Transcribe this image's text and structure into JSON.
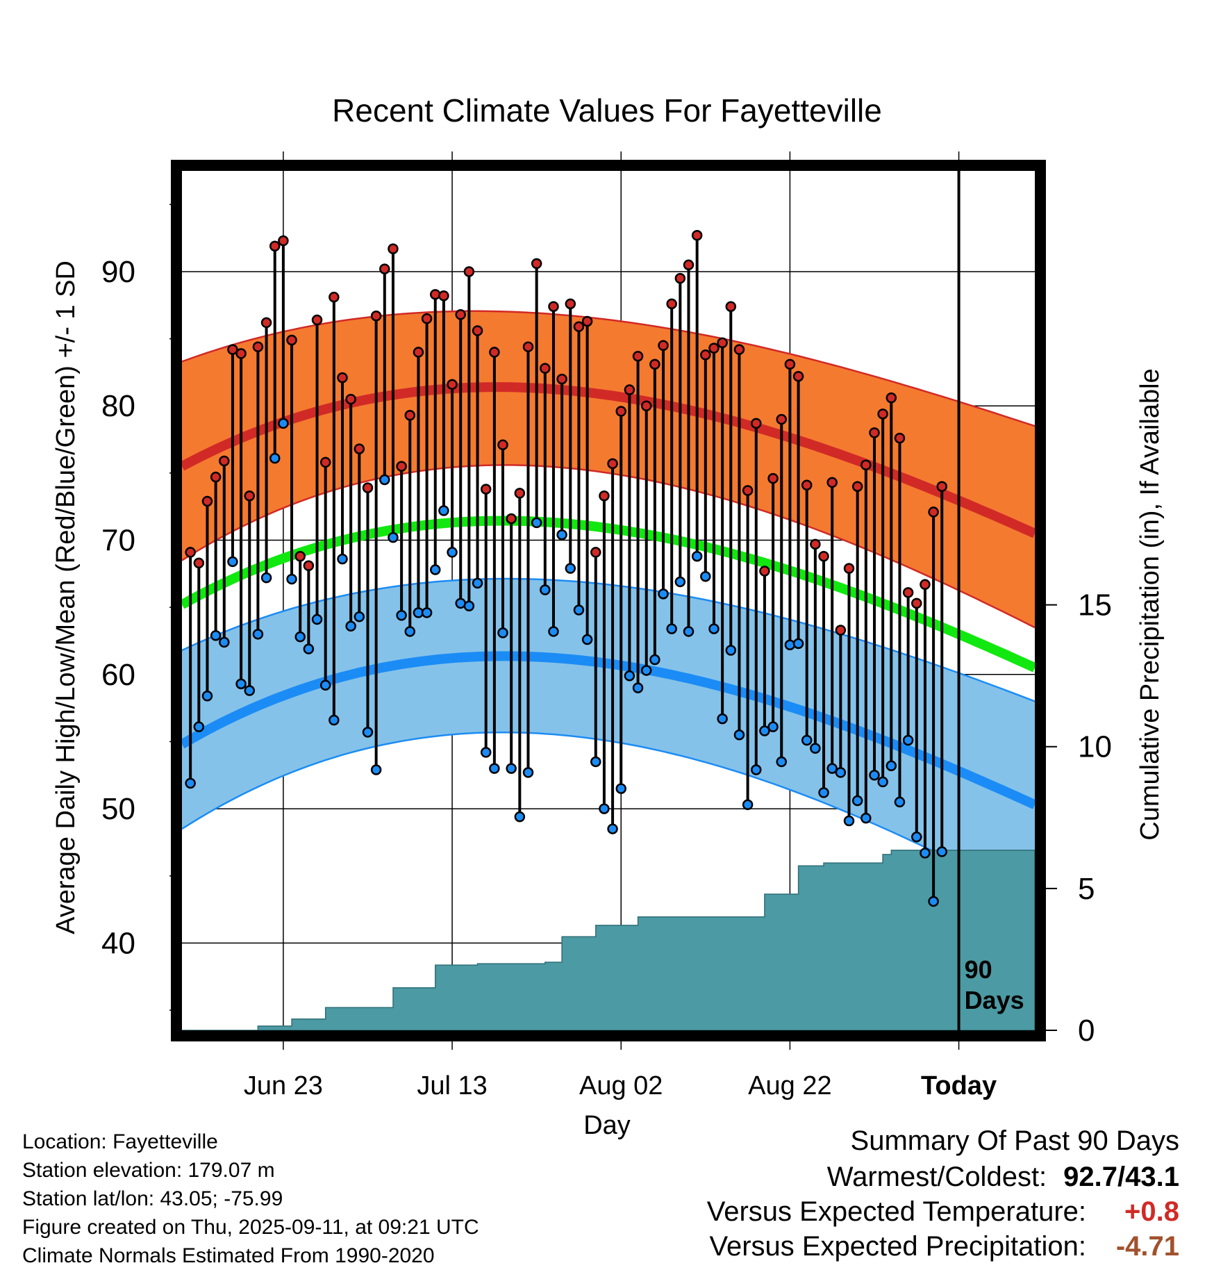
{
  "chart_data": {
    "type": "line",
    "title": "Recent Climate Values For Fayetteville",
    "xlabel": "Day",
    "ylabel_left": "Average Daily High/Low/Mean (Red/Blue/Green) +/- 1 SD",
    "ylabel_right": "Cumulative Precipitation (in), If Available",
    "x_tick_labels": [
      "Jun 23",
      "Jul 13",
      "Aug 02",
      "Aug 22",
      "Today"
    ],
    "x_tick_days": [
      12,
      32,
      52,
      72,
      92
    ],
    "xlim": [
      0,
      101
    ],
    "today_day": 92,
    "ylim_left": [
      33.5,
      97.5
    ],
    "y_ticks_left": [
      40,
      50,
      60,
      70,
      80,
      90
    ],
    "ylim_right": [
      0,
      30.3
    ],
    "y_ticks_right": [
      0,
      5,
      10,
      15
    ],
    "today_marker_label": [
      "90",
      "Days"
    ],
    "grid": true,
    "colors": {
      "high_band": "#f47a30",
      "high_line": "#d12a26",
      "low_band": "#85c2e9",
      "low_line": "#1b8cf5",
      "mean_line": "#11e80f",
      "precip": "#4c9aa3",
      "high_dot": "#d12a26",
      "low_dot": "#1b8cf5"
    },
    "normal_high": {
      "days": [
        0,
        30,
        60,
        101
      ],
      "mean": [
        75.5,
        81.2,
        79.7,
        70.5
      ],
      "upper": [
        83.3,
        87.0,
        85.5,
        78.5
      ],
      "lower": [
        68.5,
        75.3,
        73.8,
        63.5
      ]
    },
    "normal_low": {
      "days": [
        0,
        30,
        60,
        101
      ],
      "mean": [
        54.8,
        61.1,
        59.7,
        50.3
      ],
      "upper": [
        61.8,
        66.9,
        65.8,
        58.0
      ],
      "lower": [
        48.5,
        55.4,
        53.8,
        43.0
      ]
    },
    "normal_mean": {
      "days": [
        0,
        30,
        60,
        101
      ],
      "mean": [
        65.2,
        71.2,
        69.8,
        60.5
      ]
    },
    "daily_highs": [
      69.1,
      68.3,
      72.9,
      74.7,
      75.9,
      84.2,
      83.9,
      73.3,
      84.4,
      86.2,
      91.9,
      92.3,
      84.9,
      68.8,
      68.1,
      86.4,
      75.8,
      88.1,
      82.1,
      80.5,
      76.8,
      73.9,
      86.7,
      90.2,
      91.7,
      75.5,
      79.3,
      84.0,
      86.5,
      88.3,
      88.2,
      81.6,
      86.8,
      90.0,
      85.6,
      73.8,
      84.0,
      77.1,
      71.6,
      73.5,
      84.4,
      90.6,
      82.8,
      87.4,
      82.0,
      87.6,
      85.9,
      86.3,
      69.1,
      73.3,
      75.7,
      79.6,
      81.2,
      83.7,
      80.0,
      83.1,
      84.5,
      87.6,
      89.5,
      90.5,
      92.7,
      83.8,
      84.3,
      84.7,
      87.4,
      84.2,
      73.7,
      78.7,
      67.7,
      74.6,
      79.0,
      83.1,
      82.2,
      74.1,
      69.7,
      68.8,
      74.3,
      63.3,
      67.9,
      74.0,
      75.6,
      78.0,
      79.4,
      80.6,
      77.6,
      66.1,
      65.3,
      66.7,
      72.1,
      74.0
    ],
    "daily_lows": [
      51.9,
      56.1,
      58.4,
      62.9,
      62.4,
      68.4,
      59.3,
      58.8,
      63.0,
      67.2,
      76.1,
      78.7,
      67.1,
      62.8,
      61.9,
      64.1,
      59.2,
      56.6,
      68.6,
      63.6,
      64.3,
      55.7,
      52.9,
      74.5,
      70.2,
      64.4,
      63.2,
      64.6,
      64.6,
      67.8,
      72.2,
      69.1,
      65.3,
      65.1,
      66.8,
      54.2,
      53.0,
      63.1,
      53.0,
      49.4,
      52.7,
      71.3,
      66.3,
      63.2,
      70.4,
      67.9,
      64.8,
      62.6,
      53.5,
      50.0,
      48.5,
      51.5,
      59.9,
      59.0,
      60.3,
      61.1,
      66.0,
      63.4,
      66.9,
      63.2,
      68.8,
      67.3,
      63.4,
      56.7,
      61.8,
      55.5,
      50.3,
      52.9,
      55.8,
      56.1,
      53.5,
      62.2,
      62.3,
      55.1,
      54.5,
      51.2,
      53.0,
      52.7,
      49.1,
      50.6,
      49.3,
      52.5,
      52.0,
      53.2,
      50.5,
      55.1,
      47.9,
      46.7,
      43.1,
      46.8
    ],
    "precip_steps": [
      [
        0,
        0
      ],
      [
        9,
        0.15
      ],
      [
        13,
        0.4
      ],
      [
        17,
        0.8
      ],
      [
        25,
        1.5
      ],
      [
        30,
        2.3
      ],
      [
        35,
        2.35
      ],
      [
        43,
        2.4
      ],
      [
        45,
        3.3
      ],
      [
        48,
        3.3
      ],
      [
        49,
        3.7
      ],
      [
        53,
        3.7
      ],
      [
        54,
        4.0
      ],
      [
        68,
        4.0
      ],
      [
        69,
        4.8
      ],
      [
        72,
        4.8
      ],
      [
        73,
        5.8
      ],
      [
        76,
        5.9
      ],
      [
        82,
        5.9
      ],
      [
        83,
        6.2
      ],
      [
        84,
        6.35
      ],
      [
        101,
        6.35
      ]
    ]
  },
  "footer": {
    "location": "Location: Fayetteville",
    "elevation": "Station elevation: 179.07 m",
    "latlon": "Station lat/lon: 43.05; -75.99",
    "created": "Figure created on Thu, 2025-09-11, at 09:21 UTC",
    "normals": "Climate Normals Estimated From 1990-2020"
  },
  "summary": {
    "title": "Summary Of Past 90 Days",
    "warmest_label": "Warmest/Coldest:",
    "warmest_value": "92.7/43.1",
    "temp_label": "Versus Expected Temperature:",
    "temp_value": "+0.8",
    "temp_color": "#d12a26",
    "precip_label": "Versus Expected Precipitation:",
    "precip_value": "-4.71",
    "precip_color": "#a0522d"
  }
}
